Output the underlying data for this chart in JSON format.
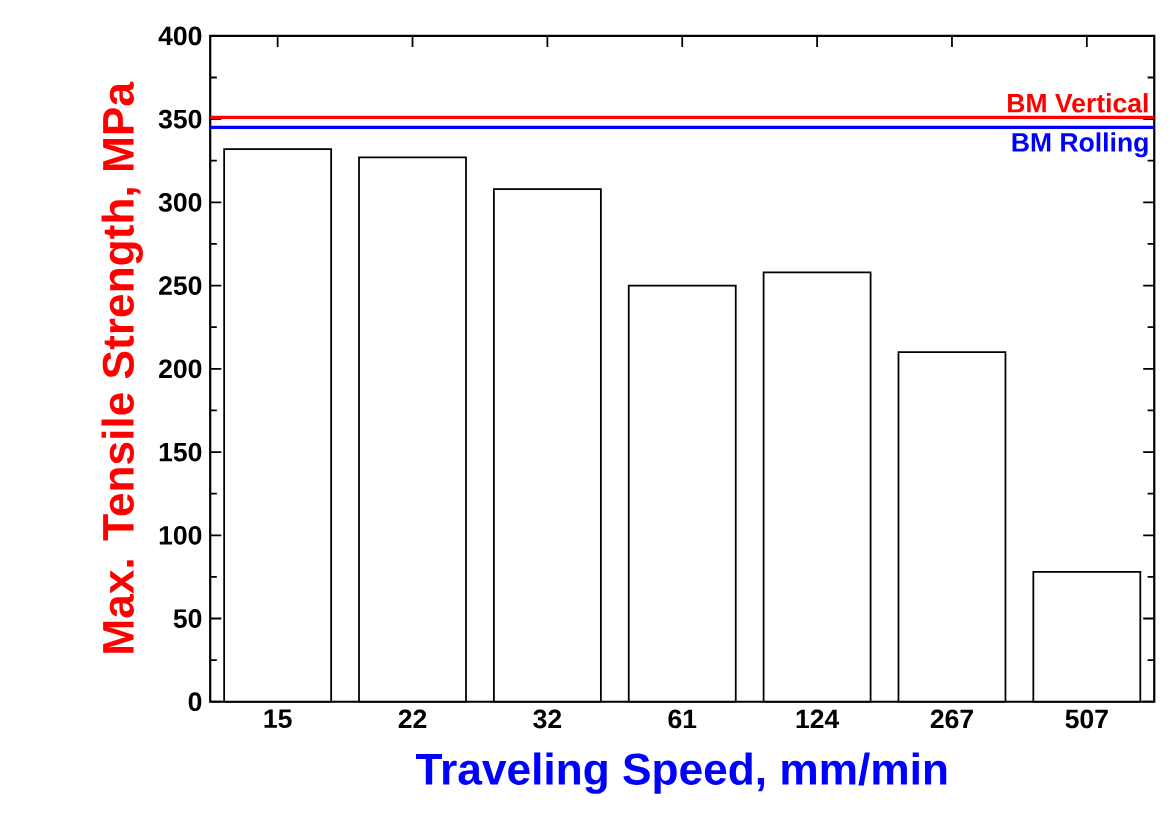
{
  "chart_data": {
    "type": "bar",
    "xlabel": "Traveling Speed, mm/min",
    "ylabel": "Max. Tensile Strength, MPa",
    "categories": [
      "15",
      "22",
      "32",
      "61",
      "124",
      "267",
      "507"
    ],
    "values": [
      332,
      327,
      308,
      250,
      258,
      210,
      78
    ],
    "color": "#ffffff",
    "ylim": [
      0,
      400
    ],
    "yticks": [
      0,
      50,
      100,
      150,
      200,
      250,
      300,
      350,
      400
    ],
    "ref_lines": [
      {
        "axis": "y",
        "value": 351,
        "label": "BM Vertical",
        "color": "#ff0000"
      },
      {
        "axis": "y",
        "value": 345,
        "label": "BM Rolling",
        "color": "#0000ff"
      }
    ]
  }
}
